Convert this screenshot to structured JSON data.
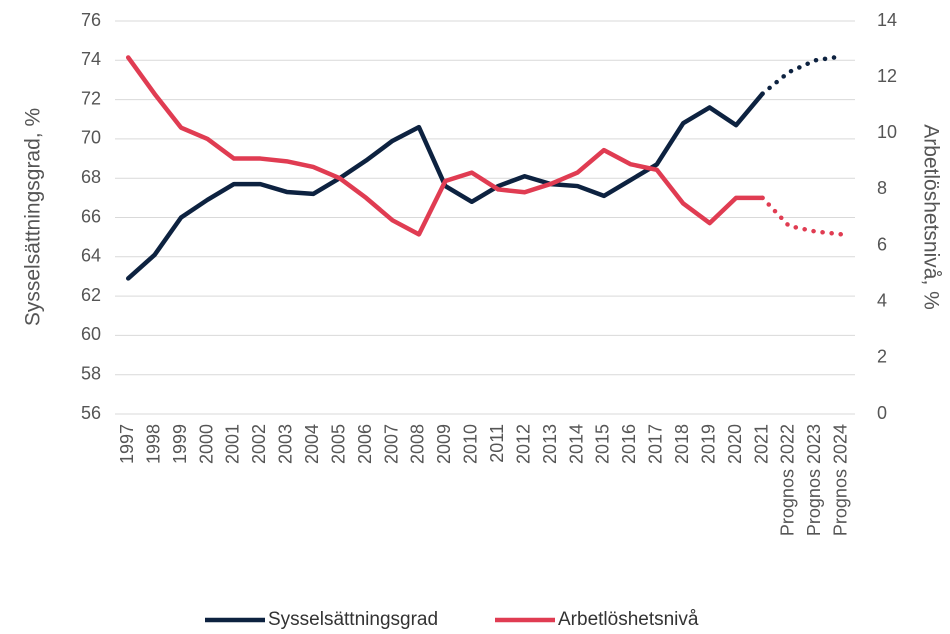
{
  "chart_data": {
    "type": "line",
    "y_label": "Sysselsättningsgrad, %",
    "y2_label": "Arbetlöshetsnivå, %",
    "categories": [
      "1997",
      "1998",
      "1999",
      "2000",
      "2001",
      "2002",
      "2003",
      "2004",
      "2005",
      "2006",
      "2007",
      "2008",
      "2009",
      "2010",
      "2011",
      "2012",
      "2013",
      "2014",
      "2015",
      "2016",
      "2017",
      "2018",
      "2019",
      "2020",
      "2021",
      "Prognos 2022",
      "Prognos 2023",
      "Prognos 2024"
    ],
    "forecast_start": 25,
    "series": [
      {
        "name": "Sysselsättningsgrad",
        "color": "#0d2240",
        "axis": "y",
        "values": [
          62.9,
          64.1,
          66.0,
          66.9,
          67.7,
          67.7,
          67.3,
          67.2,
          68.0,
          68.9,
          69.9,
          70.6,
          67.6,
          66.8,
          67.6,
          68.1,
          67.7,
          67.6,
          67.1,
          67.9,
          68.7,
          70.8,
          71.6,
          70.7,
          72.3,
          73.4,
          74.0,
          74.2
        ]
      },
      {
        "name": "Arbetlöshetsnivå",
        "color": "#e03c52",
        "axis": "y2",
        "values": [
          12.7,
          11.4,
          10.2,
          9.8,
          9.1,
          9.1,
          9.0,
          8.8,
          8.4,
          7.7,
          6.9,
          6.4,
          8.3,
          8.6,
          8.0,
          7.9,
          8.2,
          8.6,
          9.4,
          8.9,
          8.7,
          7.5,
          6.8,
          7.7,
          7.7,
          6.7,
          6.5,
          6.4
        ]
      }
    ],
    "ylim": [
      56,
      76
    ],
    "yticks": [
      56,
      58,
      60,
      62,
      64,
      66,
      68,
      70,
      72,
      74,
      76
    ],
    "y2lim": [
      0,
      14
    ],
    "y2ticks": [
      0,
      2,
      4,
      6,
      8,
      10,
      12,
      14
    ],
    "grid": true
  }
}
